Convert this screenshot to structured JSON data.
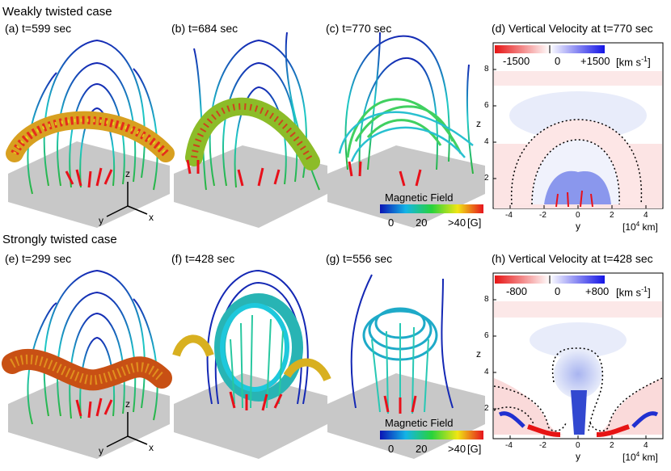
{
  "weak": {
    "title": "Weakly twisted case",
    "panels": [
      "(a) t=599 sec",
      "(b) t=684 sec",
      "(c) t=770 sec"
    ],
    "velocity_title": "(d) Vertical Velocity at t=770 sec",
    "velocity_cb": {
      "min": "-1500",
      "mid": "0",
      "max": "+1500",
      "unit": "[km s",
      "unit_exp": "-1",
      "unit_close": "]"
    }
  },
  "strong": {
    "title": "Strongly twisted case",
    "panels": [
      "(e) t=299 sec",
      "(f) t=428 sec",
      "(g) t=556 sec"
    ],
    "velocity_title": "(h) Vertical Velocity at t=428 sec",
    "velocity_cb": {
      "min": "-800",
      "mid": "0",
      "max": "+800",
      "unit": "[km s",
      "unit_exp": "-1",
      "unit_close": "]"
    }
  },
  "field_cb": {
    "title": "Magnetic Field",
    "ticks": [
      "0",
      "20",
      ">40"
    ],
    "unit": "[G]"
  },
  "axes": {
    "z_label": "z",
    "y_label": "y",
    "unit": "[10",
    "unit_exp": "4",
    "unit_rest": " km]",
    "z_ticks": [
      "2",
      "4",
      "6",
      "8"
    ],
    "y_ticks": [
      "-4",
      "-2",
      "0",
      "2",
      "4"
    ]
  },
  "triad": {
    "z": "z",
    "y": "y",
    "x": "x"
  },
  "colors": {
    "red": "#e8101a",
    "yellow": "#e6e61e",
    "green": "#22c03c",
    "cyan": "#1ec8dc",
    "blue": "#1428b4",
    "plane": "#c8c8c8"
  }
}
